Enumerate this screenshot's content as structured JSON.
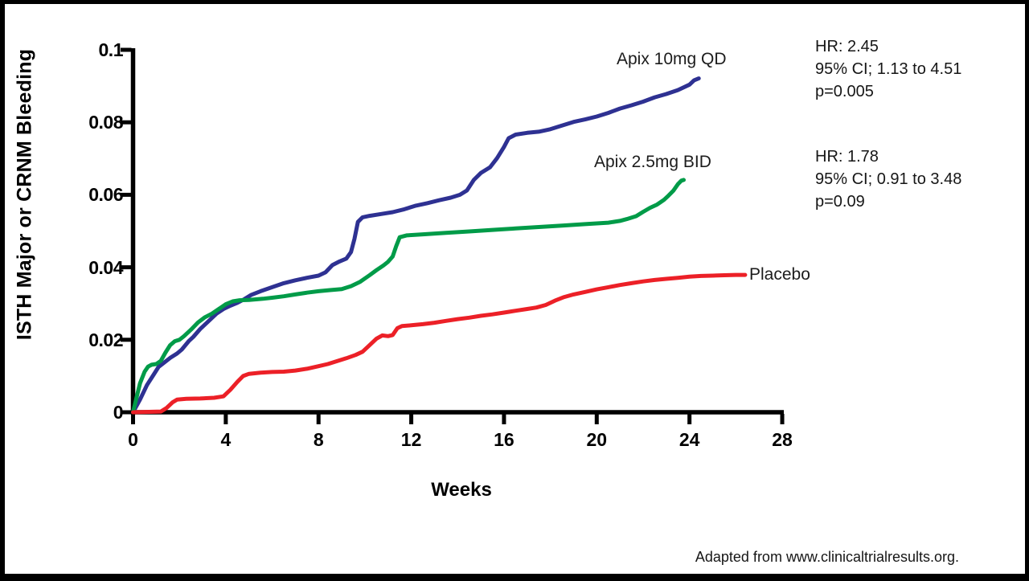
{
  "footer": {
    "text": "Adapted from www.clinicaltrialresults.org."
  },
  "chart_data": {
    "type": "line",
    "title": "",
    "xlabel": "Weeks",
    "ylabel": "ISTH Major or CRNM Bleeding",
    "xlim": [
      0,
      28
    ],
    "ylim": [
      0,
      0.1
    ],
    "grid": false,
    "legend_position": "inline-labels",
    "x_ticks": [
      0,
      4,
      8,
      12,
      16,
      20,
      24,
      28
    ],
    "x_tick_labels": [
      "0",
      "4",
      "8",
      "12",
      "16",
      "20",
      "24",
      "28"
    ],
    "y_ticks": [
      0,
      0.02,
      0.04,
      0.06,
      0.08,
      0.1
    ],
    "y_tick_labels": [
      "0",
      "0.02",
      "0.04",
      "0.06",
      "0.08",
      "0.1"
    ],
    "series": [
      {
        "id": "apix-10mg-qd",
        "name": "Apix 10mg QD",
        "color": "#2e3192",
        "points": [
          [
            0,
            0
          ],
          [
            0.3,
            0.0035
          ],
          [
            0.6,
            0.0075
          ],
          [
            0.9,
            0.0105
          ],
          [
            1.1,
            0.0125
          ],
          [
            1.4,
            0.014
          ],
          [
            1.6,
            0.015
          ],
          [
            1.9,
            0.0162
          ],
          [
            2.1,
            0.0173
          ],
          [
            2.4,
            0.0196
          ],
          [
            2.6,
            0.0208
          ],
          [
            2.9,
            0.023
          ],
          [
            3.2,
            0.0248
          ],
          [
            3.6,
            0.0272
          ],
          [
            3.9,
            0.0285
          ],
          [
            4.2,
            0.0294
          ],
          [
            4.5,
            0.0302
          ],
          [
            4.8,
            0.0312
          ],
          [
            5.1,
            0.0324
          ],
          [
            5.5,
            0.0334
          ],
          [
            6.0,
            0.0345
          ],
          [
            6.5,
            0.0356
          ],
          [
            7.0,
            0.0364
          ],
          [
            7.5,
            0.0371
          ],
          [
            8.0,
            0.0377
          ],
          [
            8.3,
            0.0386
          ],
          [
            8.6,
            0.0406
          ],
          [
            8.9,
            0.0416
          ],
          [
            9.2,
            0.0424
          ],
          [
            9.4,
            0.0442
          ],
          [
            9.55,
            0.0478
          ],
          [
            9.7,
            0.0525
          ],
          [
            9.9,
            0.0538
          ],
          [
            10.2,
            0.0542
          ],
          [
            10.7,
            0.0547
          ],
          [
            11.2,
            0.0552
          ],
          [
            11.7,
            0.056
          ],
          [
            12.2,
            0.057
          ],
          [
            12.7,
            0.0577
          ],
          [
            13.2,
            0.0585
          ],
          [
            13.7,
            0.0592
          ],
          [
            14.1,
            0.06
          ],
          [
            14.4,
            0.0612
          ],
          [
            14.7,
            0.0641
          ],
          [
            15.0,
            0.066
          ],
          [
            15.4,
            0.0676
          ],
          [
            15.7,
            0.0701
          ],
          [
            16.0,
            0.0732
          ],
          [
            16.2,
            0.0756
          ],
          [
            16.5,
            0.0766
          ],
          [
            17.0,
            0.0771
          ],
          [
            17.5,
            0.0774
          ],
          [
            18.0,
            0.0781
          ],
          [
            18.5,
            0.0791
          ],
          [
            19.0,
            0.0801
          ],
          [
            19.5,
            0.0808
          ],
          [
            20.0,
            0.0816
          ],
          [
            20.5,
            0.0826
          ],
          [
            21.0,
            0.0838
          ],
          [
            21.5,
            0.0847
          ],
          [
            22.0,
            0.0857
          ],
          [
            22.5,
            0.0869
          ],
          [
            23.0,
            0.0878
          ],
          [
            23.5,
            0.0889
          ],
          [
            24.0,
            0.0904
          ],
          [
            24.2,
            0.0916
          ],
          [
            24.4,
            0.0921
          ]
        ],
        "stats": {
          "hr": 2.45,
          "ci_95": "1.13 to 4.51",
          "p": 0.005
        }
      },
      {
        "id": "apix-2-5mg-bid",
        "name": "Apix 2.5mg BID",
        "color": "#009b48",
        "points": [
          [
            0,
            0
          ],
          [
            0.15,
            0.004
          ],
          [
            0.3,
            0.008
          ],
          [
            0.5,
            0.0112
          ],
          [
            0.65,
            0.0126
          ],
          [
            0.8,
            0.0131
          ],
          [
            1.0,
            0.0133
          ],
          [
            1.2,
            0.0142
          ],
          [
            1.4,
            0.0165
          ],
          [
            1.6,
            0.0185
          ],
          [
            1.8,
            0.0196
          ],
          [
            2.0,
            0.02
          ],
          [
            2.2,
            0.021
          ],
          [
            2.5,
            0.0228
          ],
          [
            2.8,
            0.0248
          ],
          [
            3.1,
            0.0262
          ],
          [
            3.4,
            0.0272
          ],
          [
            3.7,
            0.0285
          ],
          [
            4.0,
            0.0298
          ],
          [
            4.3,
            0.0306
          ],
          [
            4.6,
            0.0309
          ],
          [
            5.0,
            0.031
          ],
          [
            5.6,
            0.0313
          ],
          [
            6.0,
            0.0316
          ],
          [
            6.5,
            0.032
          ],
          [
            7.0,
            0.0325
          ],
          [
            7.5,
            0.033
          ],
          [
            8.0,
            0.0334
          ],
          [
            8.5,
            0.0337
          ],
          [
            9.0,
            0.034
          ],
          [
            9.4,
            0.0348
          ],
          [
            9.8,
            0.036
          ],
          [
            10.2,
            0.0378
          ],
          [
            10.5,
            0.0392
          ],
          [
            10.8,
            0.0405
          ],
          [
            11.0,
            0.0415
          ],
          [
            11.2,
            0.043
          ],
          [
            11.35,
            0.0458
          ],
          [
            11.5,
            0.0483
          ],
          [
            11.8,
            0.0488
          ],
          [
            12.5,
            0.0491
          ],
          [
            13.5,
            0.0495
          ],
          [
            14.5,
            0.0499
          ],
          [
            15.5,
            0.0503
          ],
          [
            16.5,
            0.0507
          ],
          [
            17.5,
            0.0511
          ],
          [
            18.5,
            0.0515
          ],
          [
            19.5,
            0.0519
          ],
          [
            20.5,
            0.0523
          ],
          [
            21.0,
            0.0528
          ],
          [
            21.3,
            0.0533
          ],
          [
            21.7,
            0.0541
          ],
          [
            22.0,
            0.0553
          ],
          [
            22.3,
            0.0564
          ],
          [
            22.6,
            0.0573
          ],
          [
            22.9,
            0.0586
          ],
          [
            23.1,
            0.0598
          ],
          [
            23.3,
            0.0611
          ],
          [
            23.5,
            0.0629
          ],
          [
            23.65,
            0.0639
          ],
          [
            23.75,
            0.0641
          ]
        ],
        "stats": {
          "hr": 1.78,
          "ci_95": "0.91 to 3.48",
          "p": 0.09
        }
      },
      {
        "id": "placebo",
        "name": "Placebo",
        "color": "#ec2027",
        "points": [
          [
            0,
            0
          ],
          [
            1.2,
            0.0002
          ],
          [
            1.45,
            0.0012
          ],
          [
            1.7,
            0.0027
          ],
          [
            1.9,
            0.0035
          ],
          [
            2.3,
            0.0037
          ],
          [
            2.9,
            0.0038
          ],
          [
            3.5,
            0.004
          ],
          [
            3.9,
            0.0044
          ],
          [
            4.2,
            0.0062
          ],
          [
            4.5,
            0.0084
          ],
          [
            4.75,
            0.01
          ],
          [
            5.0,
            0.0106
          ],
          [
            5.5,
            0.0109
          ],
          [
            6.0,
            0.0111
          ],
          [
            6.5,
            0.0112
          ],
          [
            7.0,
            0.0115
          ],
          [
            7.5,
            0.012
          ],
          [
            8.0,
            0.0127
          ],
          [
            8.4,
            0.0133
          ],
          [
            8.8,
            0.0141
          ],
          [
            9.2,
            0.0149
          ],
          [
            9.6,
            0.0158
          ],
          [
            9.9,
            0.0167
          ],
          [
            10.2,
            0.0185
          ],
          [
            10.5,
            0.0203
          ],
          [
            10.75,
            0.0212
          ],
          [
            11.0,
            0.021
          ],
          [
            11.2,
            0.0213
          ],
          [
            11.4,
            0.0232
          ],
          [
            11.6,
            0.0238
          ],
          [
            12.0,
            0.024
          ],
          [
            12.5,
            0.0243
          ],
          [
            13.0,
            0.0247
          ],
          [
            13.5,
            0.0252
          ],
          [
            14.0,
            0.0257
          ],
          [
            14.5,
            0.0261
          ],
          [
            15.0,
            0.0266
          ],
          [
            15.5,
            0.027
          ],
          [
            16.0,
            0.0275
          ],
          [
            16.5,
            0.028
          ],
          [
            17.0,
            0.0285
          ],
          [
            17.4,
            0.0289
          ],
          [
            17.8,
            0.0296
          ],
          [
            18.2,
            0.0308
          ],
          [
            18.6,
            0.0318
          ],
          [
            19.0,
            0.0325
          ],
          [
            19.5,
            0.0332
          ],
          [
            20.0,
            0.0339
          ],
          [
            20.5,
            0.0345
          ],
          [
            21.0,
            0.0351
          ],
          [
            21.5,
            0.0356
          ],
          [
            22.0,
            0.0361
          ],
          [
            22.5,
            0.0365
          ],
          [
            23.0,
            0.0368
          ],
          [
            23.5,
            0.0371
          ],
          [
            24.0,
            0.0374
          ],
          [
            24.5,
            0.0376
          ],
          [
            25.0,
            0.0377
          ],
          [
            25.5,
            0.0378
          ],
          [
            26.0,
            0.0379
          ],
          [
            26.4,
            0.0379
          ]
        ]
      }
    ],
    "annotations": [
      {
        "lines": [
          "HR: 2.45",
          "95% CI; 1.13 to 4.51",
          "p=0.005"
        ]
      },
      {
        "lines": [
          "HR: 1.78",
          "95% CI; 0.91 to 3.48",
          "p=0.09"
        ]
      }
    ]
  }
}
